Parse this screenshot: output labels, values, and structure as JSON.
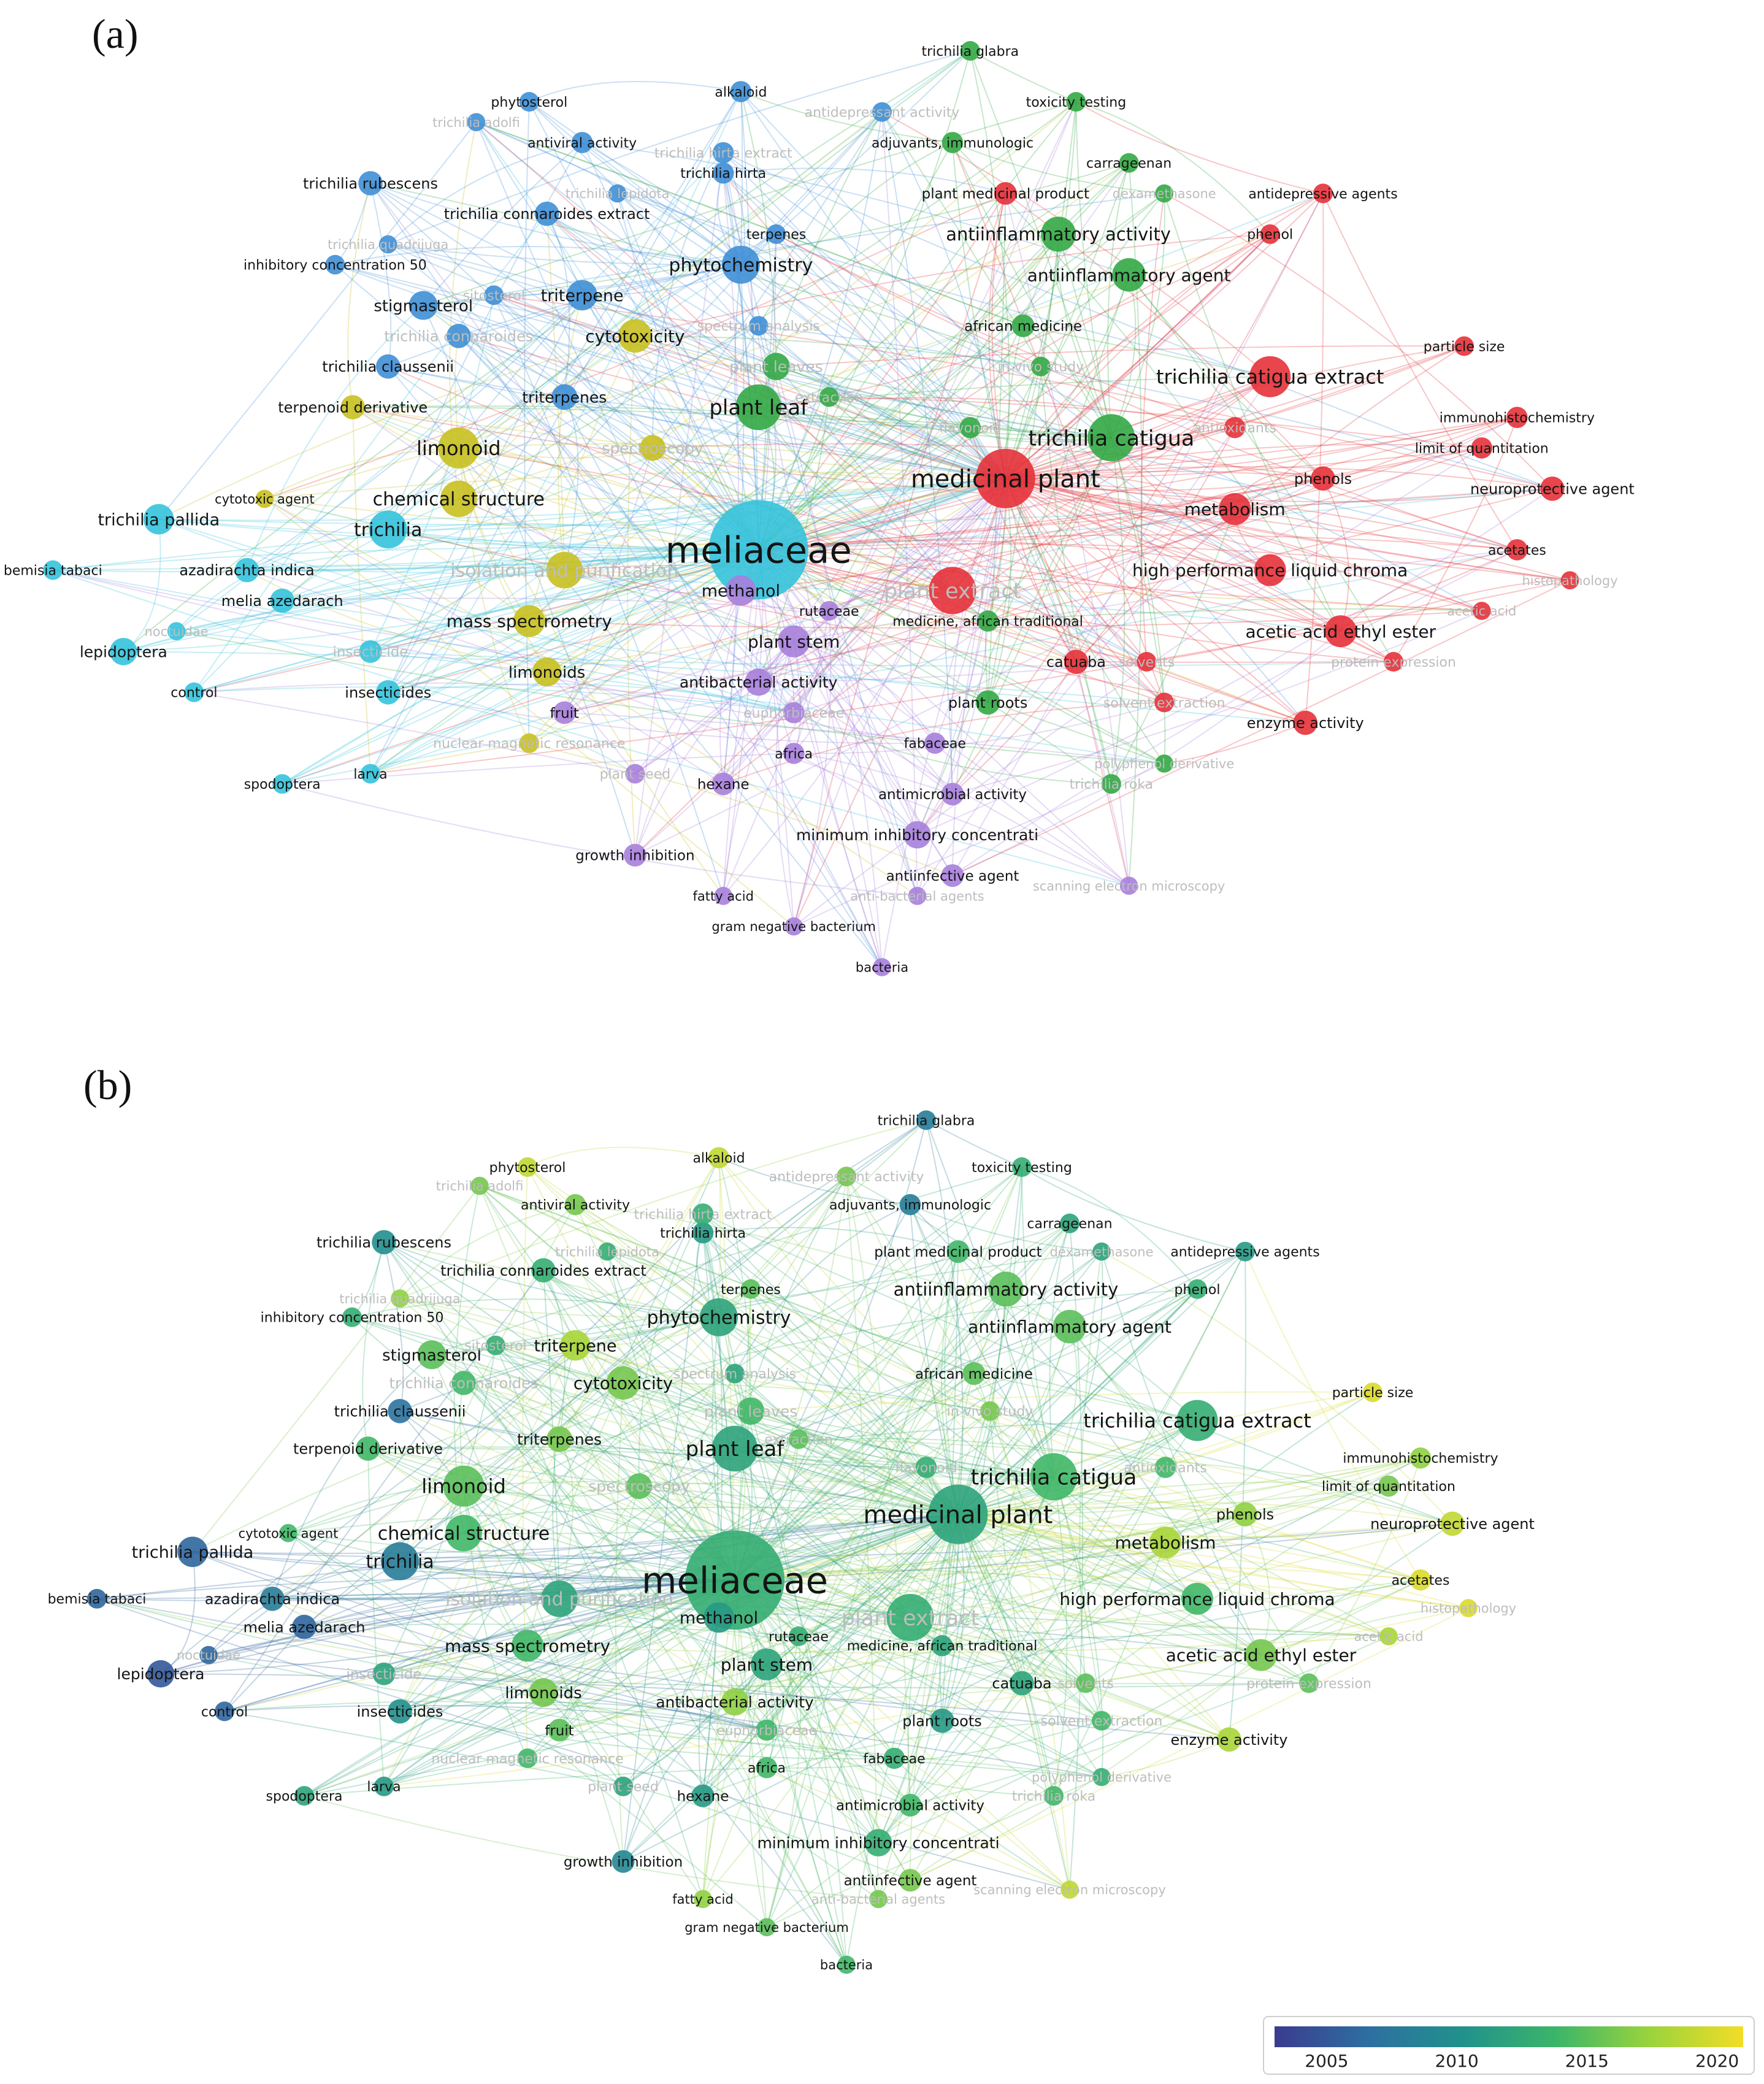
{
  "panels": [
    {
      "label": "(a)",
      "coloring": "cluster"
    },
    {
      "label": "(b)",
      "coloring": "year"
    }
  ],
  "cluster_colors": {
    "red": "#e5313a",
    "green": "#33a845",
    "blue": "#3f8fd6",
    "yellow": "#c8c020",
    "cyan": "#35c3dc",
    "purple": "#a77fdc"
  },
  "year_scale": {
    "min": 2003,
    "max": 2021,
    "ticks": [
      "2005",
      "2010",
      "2015",
      "2020"
    ],
    "tick_values": [
      2005,
      2010,
      2015,
      2020
    ],
    "stops": [
      "#3b3b8f",
      "#2d6fa0",
      "#21918c",
      "#3bb56a",
      "#9ad33d",
      "#f2dd26"
    ]
  },
  "terms": [
    {
      "label": "meliaceae",
      "cluster": "cyan",
      "w": 60,
      "year": 2013,
      "faded": false
    },
    {
      "label": "medicinal plant",
      "cluster": "red",
      "w": 34,
      "year": 2012,
      "faded": false
    },
    {
      "label": "plant extract",
      "cluster": "red",
      "w": 26,
      "year": 2013,
      "faded": true
    },
    {
      "label": "trichilia catigua",
      "cluster": "green",
      "w": 26,
      "year": 2014,
      "faded": false
    },
    {
      "label": "plant leaf",
      "cluster": "green",
      "w": 25,
      "year": 2012,
      "faded": false
    },
    {
      "label": "trichilia catigua extract",
      "cluster": "red",
      "w": 22,
      "year": 2013,
      "faded": false
    },
    {
      "label": "limonoid",
      "cluster": "yellow",
      "w": 22,
      "year": 2015,
      "faded": false
    },
    {
      "label": "phytochemistry",
      "cluster": "blue",
      "w": 20,
      "year": 2012,
      "faded": false
    },
    {
      "label": "trichilia",
      "cluster": "cyan",
      "w": 20,
      "year": 2008,
      "faded": false
    },
    {
      "label": "chemical structure",
      "cluster": "yellow",
      "w": 19,
      "year": 2014,
      "faded": false
    },
    {
      "label": "antiinflammatory activity",
      "cluster": "green",
      "w": 18,
      "year": 2015,
      "faded": false
    },
    {
      "label": "antiinflammatory agent",
      "cluster": "green",
      "w": 17,
      "year": 2015,
      "faded": false
    },
    {
      "label": "isolation and purification",
      "cluster": "yellow",
      "w": 19,
      "year": 2012,
      "faded": true
    },
    {
      "label": "cytotoxicity",
      "cluster": "yellow",
      "w": 17,
      "year": 2016,
      "faded": false
    },
    {
      "label": "metabolism",
      "cluster": "red",
      "w": 16,
      "year": 2018,
      "faded": false
    },
    {
      "label": "high performance liquid chroma",
      "cluster": "red",
      "w": 16,
      "year": 2014,
      "faded": false
    },
    {
      "label": "acetic acid ethyl ester",
      "cluster": "red",
      "w": 16,
      "year": 2016,
      "faded": false
    },
    {
      "label": "mass spectrometry",
      "cluster": "yellow",
      "w": 16,
      "year": 2014,
      "faded": false
    },
    {
      "label": "plant stem",
      "cluster": "purple",
      "w": 16,
      "year": 2012,
      "faded": false
    },
    {
      "label": "trichilia pallida",
      "cluster": "cyan",
      "w": 15,
      "year": 2006,
      "faded": false
    },
    {
      "label": "triterpene",
      "cluster": "blue",
      "w": 15,
      "year": 2018,
      "faded": false
    },
    {
      "label": "stigmasterol",
      "cluster": "blue",
      "w": 14,
      "year": 2015,
      "faded": false
    },
    {
      "label": "limonoids",
      "cluster": "yellow",
      "w": 14,
      "year": 2016,
      "faded": false
    },
    {
      "label": "methanol",
      "cluster": "purple",
      "w": 15,
      "year": 2011,
      "faded": false
    },
    {
      "label": "antibacterial activity",
      "cluster": "purple",
      "w": 13,
      "year": 2017,
      "faded": false
    },
    {
      "label": "minimum inhibitory concentrati",
      "cluster": "purple",
      "w": 13,
      "year": 2013,
      "faded": false
    },
    {
      "label": "lepidoptera",
      "cluster": "cyan",
      "w": 13,
      "year": 2005,
      "faded": false
    },
    {
      "label": "plant leaves",
      "cluster": "green",
      "w": 13,
      "year": 2014,
      "faded": true
    },
    {
      "label": "spectroscopy",
      "cluster": "yellow",
      "w": 12,
      "year": 2015,
      "faded": true
    },
    {
      "label": "triterpenes",
      "cluster": "blue",
      "w": 12,
      "year": 2016,
      "faded": false
    },
    {
      "label": "terpenoid derivative",
      "cluster": "yellow",
      "w": 11,
      "year": 2014,
      "faded": false
    },
    {
      "label": "trichilia claussenii",
      "cluster": "blue",
      "w": 11,
      "year": 2007,
      "faded": false
    },
    {
      "label": "trichilia connaroides extract",
      "cluster": "blue",
      "w": 11,
      "year": 2013,
      "faded": false
    },
    {
      "label": "trichilia rubescens",
      "cluster": "blue",
      "w": 11,
      "year": 2010,
      "faded": false
    },
    {
      "label": "trichilia connaroides",
      "cluster": "blue",
      "w": 11,
      "year": 2014,
      "faded": true
    },
    {
      "label": "azadirachta indica",
      "cluster": "cyan",
      "w": 11,
      "year": 2008,
      "faded": false
    },
    {
      "label": "melia azedarach",
      "cluster": "cyan",
      "w": 11,
      "year": 2006,
      "faded": false
    },
    {
      "label": "insecticides",
      "cluster": "cyan",
      "w": 11,
      "year": 2010,
      "faded": false
    },
    {
      "label": "insecticide",
      "cluster": "cyan",
      "w": 10,
      "year": 2012,
      "faded": true
    },
    {
      "label": "plant roots",
      "cluster": "green",
      "w": 11,
      "year": 2011,
      "faded": false
    },
    {
      "label": "catuaba",
      "cluster": "red",
      "w": 11,
      "year": 2012,
      "faded": false
    },
    {
      "label": "enzyme activity",
      "cluster": "red",
      "w": 11,
      "year": 2018,
      "faded": false
    },
    {
      "label": "neuroprotective agent",
      "cluster": "red",
      "w": 11,
      "year": 2019,
      "faded": false
    },
    {
      "label": "phenols",
      "cluster": "red",
      "w": 11,
      "year": 2017,
      "faded": false
    },
    {
      "label": "antimicrobial activity",
      "cluster": "purple",
      "w": 10,
      "year": 2014,
      "faded": false
    },
    {
      "label": "antiinfective agent",
      "cluster": "purple",
      "w": 10,
      "year": 2016,
      "faded": false
    },
    {
      "label": "growth inhibition",
      "cluster": "purple",
      "w": 10,
      "year": 2009,
      "faded": false
    },
    {
      "label": "hexane",
      "cluster": "purple",
      "w": 10,
      "year": 2011,
      "faded": false
    },
    {
      "label": "fruit",
      "cluster": "purple",
      "w": 10,
      "year": 2015,
      "faded": false
    },
    {
      "label": "africa",
      "cluster": "purple",
      "w": 9,
      "year": 2014,
      "faded": false
    },
    {
      "label": "fabaceae",
      "cluster": "purple",
      "w": 9,
      "year": 2013,
      "faded": false
    },
    {
      "label": "euphorbiaceae",
      "cluster": "purple",
      "w": 9,
      "year": 2014,
      "faded": true
    },
    {
      "label": "african medicine",
      "cluster": "green",
      "w": 10,
      "year": 2015,
      "faded": false
    },
    {
      "label": "plant medicinal product",
      "cluster": "red",
      "w": 10,
      "year": 2014,
      "faded": false
    },
    {
      "label": "adjuvants, immunologic",
      "cluster": "green",
      "w": 9,
      "year": 2008,
      "faded": false
    },
    {
      "label": "antiviral activity",
      "cluster": "blue",
      "w": 9,
      "year": 2016,
      "faded": false
    },
    {
      "label": "trichilia hirta",
      "cluster": "blue",
      "w": 9,
      "year": 2011,
      "faded": false
    },
    {
      "label": "trichilia hirta extract",
      "cluster": "blue",
      "w": 9,
      "year": 2013,
      "faded": true
    },
    {
      "label": "alkaloid",
      "cluster": "blue",
      "w": 9,
      "year": 2019,
      "faded": false
    },
    {
      "label": "phytosterol",
      "cluster": "blue",
      "w": 8,
      "year": 2019,
      "faded": false
    },
    {
      "label": "inhibitory concentration 50",
      "cluster": "blue",
      "w": 8,
      "year": 2013,
      "faded": false
    },
    {
      "label": "terpenes",
      "cluster": "blue",
      "w": 8,
      "year": 2015,
      "faded": false
    },
    {
      "label": "carrageenan",
      "cluster": "green",
      "w": 8,
      "year": 2012,
      "faded": false
    },
    {
      "label": "toxicity testing",
      "cluster": "green",
      "w": 8,
      "year": 2013,
      "faded": false
    },
    {
      "label": "trichilia glabra",
      "cluster": "green",
      "w": 8,
      "year": 2008,
      "faded": false
    },
    {
      "label": "antidepressive agents",
      "cluster": "red",
      "w": 8,
      "year": 2011,
      "faded": false
    },
    {
      "label": "phenol",
      "cluster": "red",
      "w": 8,
      "year": 2013,
      "faded": false
    },
    {
      "label": "particle size",
      "cluster": "red",
      "w": 8,
      "year": 2020,
      "faded": false
    },
    {
      "label": "immunohistochemistry",
      "cluster": "red",
      "w": 9,
      "year": 2017,
      "faded": false
    },
    {
      "label": "limit of quantitation",
      "cluster": "red",
      "w": 9,
      "year": 2016,
      "faded": false
    },
    {
      "label": "acetates",
      "cluster": "red",
      "w": 9,
      "year": 2020,
      "faded": false
    },
    {
      "label": "medicine, african traditional",
      "cluster": "green",
      "w": 9,
      "year": 2012,
      "faded": false
    },
    {
      "label": "rutaceae",
      "cluster": "purple",
      "w": 8,
      "year": 2013,
      "faded": false
    },
    {
      "label": "solvents",
      "cluster": "red",
      "w": 8,
      "year": 2015,
      "faded": true
    },
    {
      "label": "solvent extraction",
      "cluster": "red",
      "w": 8,
      "year": 2014,
      "faded": true
    },
    {
      "label": "protein expression",
      "cluster": "red",
      "w": 8,
      "year": 2015,
      "faded": true
    },
    {
      "label": "bemisia tabaci",
      "cluster": "cyan",
      "w": 8,
      "year": 2006,
      "faded": false
    },
    {
      "label": "control",
      "cluster": "cyan",
      "w": 8,
      "year": 2006,
      "faded": false
    },
    {
      "label": "spodoptera",
      "cluster": "cyan",
      "w": 8,
      "year": 2012,
      "faded": false
    },
    {
      "label": "larva",
      "cluster": "cyan",
      "w": 8,
      "year": 2011,
      "faded": false
    },
    {
      "label": "nuclear magnetic resonance",
      "cluster": "yellow",
      "w": 8,
      "year": 2014,
      "faded": true
    },
    {
      "label": "plant seed",
      "cluster": "purple",
      "w": 8,
      "year": 2012,
      "faded": true
    },
    {
      "label": "fatty acid",
      "cluster": "purple",
      "w": 7,
      "year": 2017,
      "faded": false
    },
    {
      "label": "gram negative bacterium",
      "cluster": "purple",
      "w": 7,
      "year": 2015,
      "faded": false
    },
    {
      "label": "bacteria",
      "cluster": "purple",
      "w": 7,
      "year": 2014,
      "faded": false
    },
    {
      "label": "cytotoxic agent",
      "cluster": "yellow",
      "w": 7,
      "year": 2014,
      "faded": false
    },
    {
      "label": "trichilia roka",
      "cluster": "green",
      "w": 8,
      "year": 2014,
      "faded": true
    },
    {
      "label": "polyphenol derivative",
      "cluster": "green",
      "w": 7,
      "year": 2013,
      "faded": true
    },
    {
      "label": "antioxidants",
      "cluster": "red",
      "w": 9,
      "year": 2014,
      "faded": true
    },
    {
      "label": "flavonoid",
      "cluster": "green",
      "w": 9,
      "year": 2013,
      "faded": true
    },
    {
      "label": "extraction",
      "cluster": "green",
      "w": 8,
      "year": 2015,
      "faded": true
    },
    {
      "label": "in vivo study",
      "cluster": "green",
      "w": 8,
      "year": 2016,
      "faded": true
    },
    {
      "label": "spectrum analysis",
      "cluster": "blue",
      "w": 8,
      "year": 2012,
      "faded": true
    },
    {
      "label": "sitosterol",
      "cluster": "blue",
      "w": 8,
      "year": 2013,
      "faded": true
    },
    {
      "label": "antidepressant activity",
      "cluster": "blue",
      "w": 8,
      "year": 2016,
      "faded": true
    },
    {
      "label": "trichilia adolfi",
      "cluster": "blue",
      "w": 7,
      "year": 2016,
      "faded": true
    },
    {
      "label": "trichilia lepidota",
      "cluster": "blue",
      "w": 7,
      "year": 2013,
      "faded": true
    },
    {
      "label": "trichilia quadrijuga",
      "cluster": "blue",
      "w": 7,
      "year": 2017,
      "faded": true
    },
    {
      "label": "dexamethasone",
      "cluster": "green",
      "w": 7,
      "year": 2012,
      "faded": true
    },
    {
      "label": "noctuidae",
      "cluster": "cyan",
      "w": 7,
      "year": 2006,
      "faded": true
    },
    {
      "label": "anti-bacterial agents",
      "cluster": "purple",
      "w": 7,
      "year": 2016,
      "faded": true
    },
    {
      "label": "scanning electron microscopy",
      "cluster": "purple",
      "w": 7,
      "year": 2019,
      "faded": true
    },
    {
      "label": "acetic acid",
      "cluster": "red",
      "w": 7,
      "year": 2018,
      "faded": true
    },
    {
      "label": "histopathology",
      "cluster": "red",
      "w": 7,
      "year": 2020,
      "faded": true
    }
  ]
}
